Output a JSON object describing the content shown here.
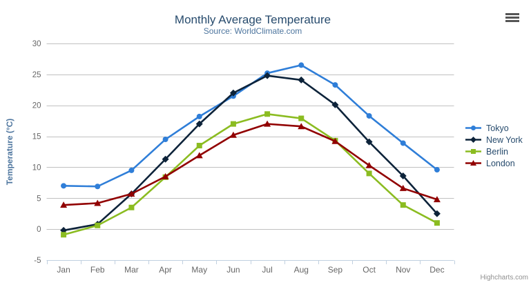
{
  "chart_data": {
    "type": "line",
    "title": "Monthly Average Temperature",
    "subtitle": "Source: WorldClimate.com",
    "categories": [
      "Jan",
      "Feb",
      "Mar",
      "Apr",
      "May",
      "Jun",
      "Jul",
      "Aug",
      "Sep",
      "Oct",
      "Nov",
      "Dec"
    ],
    "xlabel": "",
    "ylabel": "Temperature (°C)",
    "yAxis": {
      "title": "Temperature (°C)",
      "min": -5,
      "max": 30,
      "tick_interval": 5,
      "ticks": [
        30,
        25,
        20,
        15,
        10,
        5,
        0,
        -5
      ]
    },
    "ylim": [
      -5,
      30
    ],
    "grid": "horizontal",
    "legend_position": "right",
    "series": [
      {
        "name": "Tokyo",
        "color": "#2f7ed8",
        "marker": "circle",
        "values": [
          7.0,
          6.9,
          9.5,
          14.5,
          18.2,
          21.5,
          25.2,
          26.5,
          23.3,
          18.3,
          13.9,
          9.6
        ]
      },
      {
        "name": "New York",
        "color": "#0d233a",
        "marker": "diamond",
        "values": [
          -0.2,
          0.8,
          5.7,
          11.3,
          17.0,
          22.0,
          24.8,
          24.1,
          20.1,
          14.1,
          8.6,
          2.5
        ]
      },
      {
        "name": "Berlin",
        "color": "#8bbc21",
        "marker": "square",
        "values": [
          -0.9,
          0.6,
          3.5,
          8.4,
          13.5,
          17.0,
          18.6,
          17.9,
          14.3,
          9.0,
          3.9,
          1.0
        ]
      },
      {
        "name": "London",
        "color": "#910000",
        "marker": "triangle",
        "values": [
          3.9,
          4.2,
          5.7,
          8.5,
          11.9,
          15.2,
          17.0,
          16.6,
          14.2,
          10.3,
          6.6,
          4.8
        ]
      }
    ]
  },
  "credits": {
    "label": "Highcharts.com"
  },
  "colors": {
    "title": "#274b6d",
    "subtitle": "#4d759e",
    "axis_title": "#4d759e",
    "tick_label": "#666666",
    "gridline": "#c0c0c0",
    "axis_line": "#c0d0e0",
    "legend_label": "#274b6d",
    "credits": "#909090",
    "hamburger": "#555555"
  }
}
